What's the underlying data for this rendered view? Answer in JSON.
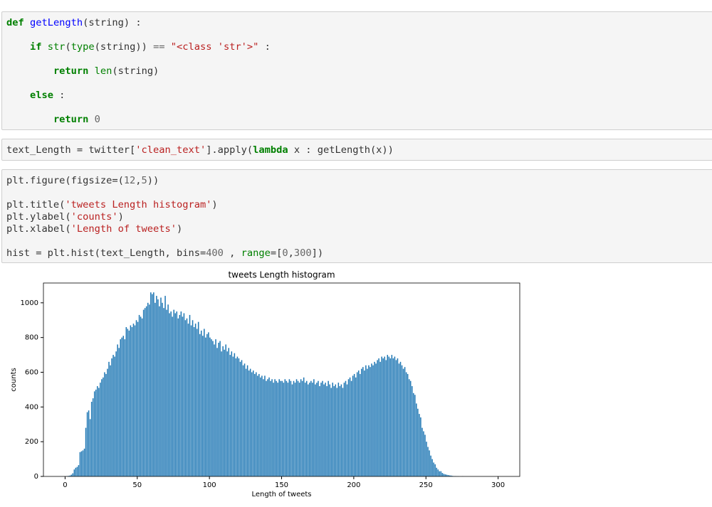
{
  "cells": [
    {
      "lines": [
        [
          [
            "def",
            "kw"
          ],
          [
            " ",
            "p"
          ],
          [
            "getLength",
            "fn"
          ],
          [
            "(string) :",
            "p"
          ]
        ],
        [],
        [
          [
            "    ",
            "p"
          ],
          [
            "if",
            "kw"
          ],
          [
            " ",
            "p"
          ],
          [
            "str",
            "bi"
          ],
          [
            "(",
            "p"
          ],
          [
            "type",
            "bi"
          ],
          [
            "(string)) ",
            "p"
          ],
          [
            "==",
            "op"
          ],
          [
            " ",
            "p"
          ],
          [
            "\"<class 'str'>\"",
            "str"
          ],
          [
            " :",
            "p"
          ]
        ],
        [],
        [
          [
            "        ",
            "p"
          ],
          [
            "return",
            "kw"
          ],
          [
            " ",
            "p"
          ],
          [
            "len",
            "bi"
          ],
          [
            "(string)",
            "p"
          ]
        ],
        [],
        [
          [
            "    ",
            "p"
          ],
          [
            "else",
            "kw"
          ],
          [
            " :",
            "p"
          ]
        ],
        [],
        [
          [
            "        ",
            "p"
          ],
          [
            "return",
            "kw"
          ],
          [
            " ",
            "p"
          ],
          [
            "0",
            "num"
          ]
        ]
      ]
    },
    {
      "lines": [
        [
          [
            "text_Length = twitter[",
            "p"
          ],
          [
            "'clean_text'",
            "str"
          ],
          [
            "].apply(",
            "p"
          ],
          [
            "lambda",
            "kw"
          ],
          [
            " x : getLength(x))",
            "p"
          ]
        ]
      ]
    },
    {
      "lines": [
        [
          [
            "plt.figure(figsize=(",
            "p"
          ],
          [
            "12",
            "num"
          ],
          [
            ",",
            "p"
          ],
          [
            "5",
            "num"
          ],
          [
            "))",
            "p"
          ]
        ],
        [],
        [
          [
            "plt.title(",
            "p"
          ],
          [
            "'tweets Length histogram'",
            "str"
          ],
          [
            ")",
            "p"
          ]
        ],
        [
          [
            "plt.ylabel(",
            "p"
          ],
          [
            "'counts'",
            "str"
          ],
          [
            ")",
            "p"
          ]
        ],
        [
          [
            "plt.xlabel(",
            "p"
          ],
          [
            "'Length of tweets'",
            "str"
          ],
          [
            ")",
            "p"
          ]
        ],
        [],
        [
          [
            "hist = plt.hist(text_Length, bins=",
            "p"
          ],
          [
            "400",
            "num"
          ],
          [
            " , ",
            "p"
          ],
          [
            "range",
            "bi"
          ],
          [
            "=[",
            "p"
          ],
          [
            "0",
            "num"
          ],
          [
            ",",
            "p"
          ],
          [
            "300",
            "num"
          ],
          [
            "])",
            "p"
          ]
        ]
      ]
    }
  ],
  "chart_data": {
    "type": "histogram",
    "title": "tweets Length histogram",
    "x_label": "Length of tweets",
    "y_label": "counts",
    "color": "#1f77b4",
    "x": [
      0,
      1,
      2,
      3,
      4,
      5,
      6,
      7,
      8,
      9,
      10,
      11,
      12,
      13,
      14,
      15,
      16,
      17,
      18,
      19,
      20,
      21,
      22,
      23,
      24,
      25,
      26,
      27,
      28,
      29,
      30,
      31,
      32,
      33,
      34,
      35,
      36,
      37,
      38,
      39,
      40,
      41,
      42,
      43,
      44,
      45,
      46,
      47,
      48,
      49,
      50,
      51,
      52,
      53,
      54,
      55,
      56,
      57,
      58,
      59,
      60,
      61,
      62,
      63,
      64,
      65,
      66,
      67,
      68,
      69,
      70,
      71,
      72,
      73,
      74,
      75,
      76,
      77,
      78,
      79,
      80,
      81,
      82,
      83,
      84,
      85,
      86,
      87,
      88,
      89,
      90,
      91,
      92,
      93,
      94,
      95,
      96,
      97,
      98,
      99,
      100,
      101,
      102,
      103,
      104,
      105,
      106,
      107,
      108,
      109,
      110,
      111,
      112,
      113,
      114,
      115,
      116,
      117,
      118,
      119,
      120,
      121,
      122,
      123,
      124,
      125,
      126,
      127,
      128,
      129,
      130,
      131,
      132,
      133,
      134,
      135,
      136,
      137,
      138,
      139,
      140,
      141,
      142,
      143,
      144,
      145,
      146,
      147,
      148,
      149,
      150,
      151,
      152,
      153,
      154,
      155,
      156,
      157,
      158,
      159,
      160,
      161,
      162,
      163,
      164,
      165,
      166,
      167,
      168,
      169,
      170,
      171,
      172,
      173,
      174,
      175,
      176,
      177,
      178,
      179,
      180,
      181,
      182,
      183,
      184,
      185,
      186,
      187,
      188,
      189,
      190,
      191,
      192,
      193,
      194,
      195,
      196,
      197,
      198,
      199,
      200,
      201,
      202,
      203,
      204,
      205,
      206,
      207,
      208,
      209,
      210,
      211,
      212,
      213,
      214,
      215,
      216,
      217,
      218,
      219,
      220,
      221,
      222,
      223,
      224,
      225,
      226,
      227,
      228,
      229,
      230,
      231,
      232,
      233,
      234,
      235,
      236,
      237,
      238,
      239,
      240,
      241,
      242,
      243,
      244,
      245,
      246,
      247,
      248,
      249,
      250,
      251,
      252,
      253,
      254,
      255,
      256,
      257,
      258,
      259,
      260,
      261,
      262,
      263,
      264,
      265,
      266,
      267,
      268,
      269,
      270,
      271,
      272,
      273,
      274,
      275,
      276,
      277,
      278,
      279
    ],
    "values": [
      0,
      2,
      3,
      5,
      10,
      18,
      40,
      50,
      55,
      65,
      140,
      145,
      150,
      160,
      280,
      370,
      380,
      330,
      430,
      450,
      490,
      500,
      520,
      510,
      540,
      560,
      570,
      600,
      590,
      620,
      660,
      640,
      680,
      700,
      690,
      720,
      760,
      740,
      790,
      800,
      810,
      790,
      860,
      850,
      840,
      870,
      860,
      880,
      870,
      900,
      890,
      930,
      920,
      910,
      960,
      970,
      980,
      1000,
      990,
      1060,
      1050,
      1060,
      1000,
      1040,
      1020,
      980,
      1030,
      1000,
      970,
      1040,
      960,
      990,
      940,
      950,
      920,
      960,
      940,
      950,
      910,
      930,
      950,
      920,
      940,
      900,
      910,
      880,
      930,
      870,
      900,
      860,
      880,
      850,
      890,
      820,
      840,
      810,
      850,
      800,
      820,
      830,
      800,
      790,
      780,
      760,
      790,
      740,
      770,
      780,
      720,
      750,
      730,
      760,
      720,
      740,
      700,
      720,
      690,
      710,
      680,
      690,
      680,
      660,
      670,
      640,
      650,
      620,
      640,
      610,
      620,
      600,
      610,
      590,
      600,
      580,
      590,
      570,
      580,
      560,
      580,
      550,
      560,
      570,
      550,
      560,
      540,
      560,
      550,
      540,
      560,
      550,
      550,
      540,
      560,
      550,
      540,
      560,
      550,
      530,
      550,
      540,
      560,
      550,
      540,
      560,
      550,
      570,
      540,
      550,
      530,
      540,
      550,
      540,
      560,
      530,
      540,
      550,
      520,
      540,
      550,
      530,
      540,
      520,
      550,
      530,
      510,
      540,
      520,
      530,
      510,
      540,
      520,
      530,
      510,
      540,
      550,
      530,
      560,
      570,
      550,
      580,
      590,
      570,
      600,
      610,
      590,
      620,
      630,
      610,
      640,
      620,
      640,
      630,
      650,
      640,
      660,
      650,
      670,
      680,
      660,
      690,
      680,
      690,
      670,
      700,
      690,
      680,
      700,
      680,
      690,
      670,
      680,
      650,
      660,
      640,
      620,
      630,
      600,
      590,
      560,
      550,
      520,
      480,
      470,
      420,
      390,
      360,
      340,
      280,
      260,
      240,
      200,
      170,
      150,
      120,
      100,
      80,
      70,
      50,
      40,
      30,
      30,
      20,
      15,
      12,
      10,
      8,
      6,
      5,
      3,
      2,
      2,
      1,
      1,
      0,
      0,
      1,
      0,
      0,
      0,
      0
    ],
    "bar_width": 0.75,
    "xlim": [
      -15,
      315
    ],
    "ylim": [
      0,
      1114
    ],
    "xticks": [
      0,
      50,
      100,
      150,
      200,
      250,
      300
    ],
    "yticks": [
      0,
      200,
      400,
      600,
      800,
      1000
    ],
    "grid": false
  }
}
